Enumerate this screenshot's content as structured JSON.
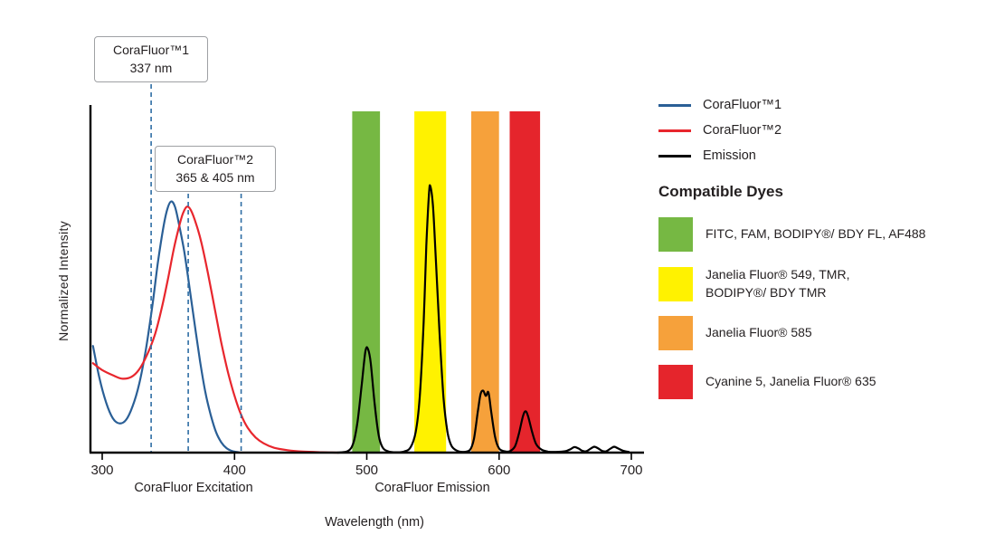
{
  "chart_data": {
    "type": "line",
    "title": "",
    "xlabel": "Wavelength (nm)",
    "ylabel": "Normalized Intensity",
    "x_ticks": [
      300,
      400,
      500,
      600,
      700
    ],
    "x_range": [
      293,
      708
    ],
    "y_range": [
      0,
      1
    ],
    "grid": false,
    "dashed_line_color": "#2e6da4",
    "axis_sections": [
      {
        "label": "CoraFluor Excitation"
      },
      {
        "label": "CoraFluor Emission"
      }
    ],
    "annotations": [
      {
        "title": "CoraFluor™1",
        "value": "337 nm",
        "lines_nm": [
          337
        ]
      },
      {
        "title": "CoraFluor™2",
        "value": "365 & 405 nm",
        "lines_nm": [
          365,
          405
        ]
      }
    ],
    "bands": [
      {
        "name": "green-filter",
        "color": "#76b843",
        "range_nm": [
          489,
          510
        ]
      },
      {
        "name": "yellow-filter",
        "color": "#fff200",
        "range_nm": [
          536,
          560
        ]
      },
      {
        "name": "orange-filter",
        "color": "#f6a13b",
        "range_nm": [
          579,
          600
        ]
      },
      {
        "name": "red-filter",
        "color": "#e5252c",
        "range_nm": [
          608,
          631
        ]
      }
    ],
    "series": [
      {
        "name": "CoraFluor™1",
        "color": "#2a5f96",
        "points": [
          [
            293,
            0.31
          ],
          [
            298,
            0.215
          ],
          [
            303,
            0.145
          ],
          [
            308,
            0.1
          ],
          [
            313,
            0.085
          ],
          [
            318,
            0.095
          ],
          [
            323,
            0.135
          ],
          [
            328,
            0.2
          ],
          [
            333,
            0.3
          ],
          [
            338,
            0.43
          ],
          [
            342,
            0.55
          ],
          [
            346,
            0.65
          ],
          [
            349,
            0.705
          ],
          [
            352,
            0.73
          ],
          [
            355,
            0.715
          ],
          [
            358,
            0.665
          ],
          [
            362,
            0.585
          ],
          [
            366,
            0.48
          ],
          [
            370,
            0.37
          ],
          [
            374,
            0.265
          ],
          [
            378,
            0.175
          ],
          [
            382,
            0.11
          ],
          [
            386,
            0.06
          ],
          [
            390,
            0.03
          ],
          [
            394,
            0.013
          ],
          [
            398,
            0.005
          ],
          [
            403,
            0.001
          ]
        ]
      },
      {
        "name": "CoraFluor™2",
        "color": "#e8262d",
        "points": [
          [
            293,
            0.26
          ],
          [
            300,
            0.24
          ],
          [
            308,
            0.225
          ],
          [
            315,
            0.215
          ],
          [
            322,
            0.22
          ],
          [
            328,
            0.242
          ],
          [
            334,
            0.285
          ],
          [
            340,
            0.345
          ],
          [
            345,
            0.42
          ],
          [
            350,
            0.51
          ],
          [
            354,
            0.59
          ],
          [
            358,
            0.655
          ],
          [
            361,
            0.695
          ],
          [
            364,
            0.715
          ],
          [
            367,
            0.705
          ],
          [
            371,
            0.665
          ],
          [
            375,
            0.61
          ],
          [
            380,
            0.52
          ],
          [
            385,
            0.42
          ],
          [
            390,
            0.32
          ],
          [
            395,
            0.235
          ],
          [
            400,
            0.165
          ],
          [
            405,
            0.11
          ],
          [
            410,
            0.072
          ],
          [
            416,
            0.044
          ],
          [
            422,
            0.027
          ],
          [
            430,
            0.014
          ],
          [
            440,
            0.007
          ],
          [
            452,
            0.003
          ],
          [
            466,
            0.001
          ],
          [
            478,
            0
          ]
        ]
      },
      {
        "name": "Emission",
        "color": "#000000",
        "points": [
          [
            478,
            0
          ],
          [
            486,
            0.005
          ],
          [
            490,
            0.03
          ],
          [
            493,
            0.09
          ],
          [
            496,
            0.19
          ],
          [
            499,
            0.295
          ],
          [
            501,
            0.3
          ],
          [
            503,
            0.26
          ],
          [
            506,
            0.14
          ],
          [
            509,
            0.05
          ],
          [
            512,
            0.015
          ],
          [
            516,
            0.004
          ],
          [
            522,
            0.001
          ],
          [
            528,
            0.003
          ],
          [
            533,
            0.015
          ],
          [
            537,
            0.06
          ],
          [
            540,
            0.16
          ],
          [
            543,
            0.38
          ],
          [
            545,
            0.6
          ],
          [
            547,
            0.75
          ],
          [
            548,
            0.775
          ],
          [
            550,
            0.72
          ],
          [
            552,
            0.58
          ],
          [
            555,
            0.35
          ],
          [
            558,
            0.16
          ],
          [
            561,
            0.06
          ],
          [
            564,
            0.02
          ],
          [
            568,
            0.006
          ],
          [
            573,
            0.002
          ],
          [
            578,
            0.008
          ],
          [
            581,
            0.04
          ],
          [
            584,
            0.12
          ],
          [
            586,
            0.17
          ],
          [
            588,
            0.18
          ],
          [
            590,
            0.165
          ],
          [
            592,
            0.175
          ],
          [
            594,
            0.12
          ],
          [
            597,
            0.045
          ],
          [
            600,
            0.012
          ],
          [
            604,
            0.004
          ],
          [
            608,
            0.004
          ],
          [
            612,
            0.018
          ],
          [
            615,
            0.055
          ],
          [
            618,
            0.105
          ],
          [
            620,
            0.12
          ],
          [
            622,
            0.105
          ],
          [
            625,
            0.06
          ],
          [
            628,
            0.025
          ],
          [
            632,
            0.009
          ],
          [
            637,
            0.003
          ],
          [
            643,
            0.002
          ],
          [
            650,
            0.004
          ],
          [
            654,
            0.01
          ],
          [
            657,
            0.016
          ],
          [
            660,
            0.012
          ],
          [
            663,
            0.005
          ],
          [
            666,
            0.004
          ],
          [
            669,
            0.011
          ],
          [
            672,
            0.017
          ],
          [
            675,
            0.012
          ],
          [
            678,
            0.005
          ],
          [
            681,
            0.004
          ],
          [
            684,
            0.011
          ],
          [
            687,
            0.017
          ],
          [
            690,
            0.012
          ],
          [
            694,
            0.005
          ],
          [
            698,
            0.002
          ]
        ]
      }
    ]
  },
  "legend": {
    "items": [
      {
        "label": "CoraFluor™1",
        "color": "#2a5f96"
      },
      {
        "label": "CoraFluor™2",
        "color": "#e8262d"
      },
      {
        "label": "Emission",
        "color": "#000000"
      }
    ]
  },
  "dyes": {
    "heading": "Compatible Dyes",
    "items": [
      {
        "color": "#76b843",
        "label": "FITC, FAM, BODIPY®/ BDY FL, AF488"
      },
      {
        "color": "#fff200",
        "label": "Janelia Fluor® 549, TMR,\nBODIPY®/ BDY TMR"
      },
      {
        "color": "#f6a13b",
        "label": "Janelia Fluor® 585"
      },
      {
        "color": "#e5252c",
        "label": "Cyanine 5, Janelia Fluor® 635"
      }
    ]
  }
}
